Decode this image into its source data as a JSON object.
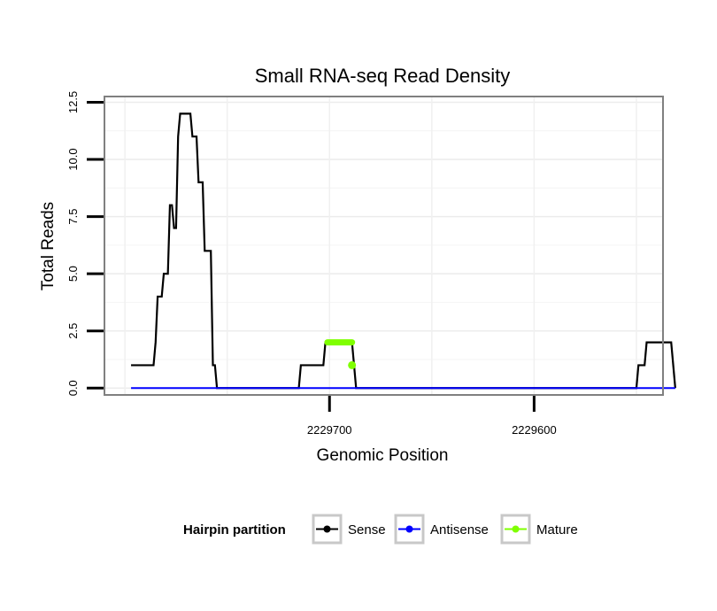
{
  "chart_data": {
    "type": "line",
    "title": "Small RNA-seq Read Density",
    "xlabel": "Genomic Position",
    "ylabel": "Total Reads",
    "x_reversed": true,
    "xlim": [
      2229810,
      2229537
    ],
    "ylim": [
      -0.3,
      12.75
    ],
    "x_ticks": [
      2229700,
      2229600
    ],
    "x_tick_labels": [
      "2229700",
      "2229600"
    ],
    "y_ticks": [
      0,
      2.5,
      5,
      7.5,
      10,
      12.5
    ],
    "y_tick_labels": [
      "0.0",
      "2.5",
      "5.0",
      "7.5",
      "10.0",
      "12.5"
    ],
    "grid": true,
    "legend": {
      "title": "Hairpin partition",
      "position": "bottom",
      "entries": [
        "Sense",
        "Antisense",
        "Mature"
      ]
    },
    "series": [
      {
        "name": "Sense",
        "color": "#000000",
        "points": [
          [
            2229797,
            1
          ],
          [
            2229786,
            1
          ],
          [
            2229785,
            2
          ],
          [
            2229784,
            4
          ],
          [
            2229782,
            4
          ],
          [
            2229781,
            5
          ],
          [
            2229779,
            5
          ],
          [
            2229778,
            8
          ],
          [
            2229777,
            8
          ],
          [
            2229776,
            7
          ],
          [
            2229775,
            7
          ],
          [
            2229774,
            11
          ],
          [
            2229773,
            12
          ],
          [
            2229768,
            12
          ],
          [
            2229767,
            11
          ],
          [
            2229765,
            11
          ],
          [
            2229764,
            9
          ],
          [
            2229762,
            9
          ],
          [
            2229761,
            6
          ],
          [
            2229758,
            6
          ],
          [
            2229757,
            1
          ],
          [
            2229756,
            1
          ],
          [
            2229755,
            0
          ],
          [
            2229715,
            0
          ],
          [
            2229714,
            1
          ],
          [
            2229703,
            1
          ],
          [
            2229702,
            2
          ],
          [
            2229689,
            2
          ],
          [
            2229687,
            0
          ],
          [
            2229550,
            0
          ],
          [
            2229549,
            1
          ],
          [
            2229546,
            1
          ],
          [
            2229545,
            2
          ],
          [
            2229533,
            2
          ],
          [
            2229531,
            0
          ]
        ]
      },
      {
        "name": "Antisense",
        "color": "#0000ff",
        "points": [
          [
            2229797,
            0
          ],
          [
            2229531,
            0
          ]
        ]
      },
      {
        "name": "Mature",
        "color": "#7fff00",
        "segments": [
          [
            [
              2229701,
              2
            ],
            [
              2229689,
              2
            ]
          ]
        ],
        "points": [
          [
            2229689,
            1
          ]
        ]
      }
    ]
  }
}
